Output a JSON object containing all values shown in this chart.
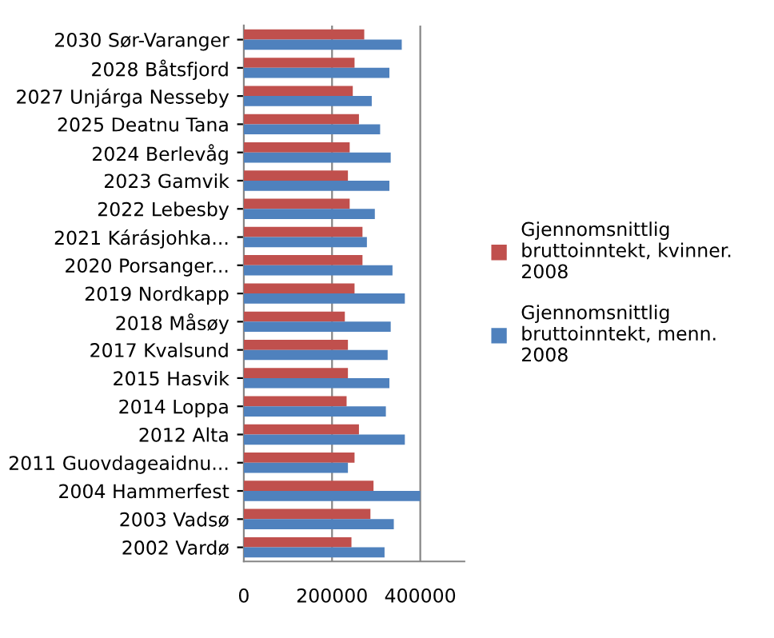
{
  "chart_data": {
    "type": "bar",
    "orientation": "horizontal",
    "categories": [
      "2030 Sør-Varanger",
      "2028 Båtsfjord",
      "2027 Unjárga Nesseby",
      "2025 Deatnu Tana",
      "2024 Berlevåg",
      "2023 Gamvik",
      "2022 Lebesby",
      "2021 Kárásjohka...",
      "2020 Porsanger...",
      "2019 Nordkapp",
      "2018 Måsøy",
      "2017 Kvalsund",
      "2015 Hasvik",
      "2014 Loppa",
      "2012 Alta",
      "2011 Guovdageaidnu...",
      "2004 Hammerfest",
      "2003 Vadsø",
      "2002 Vardø"
    ],
    "series": [
      {
        "name": "Gjennomsnittlig bruttoinntekt, kvinner. 2008",
        "color": "#c0504d",
        "values": [
          273000,
          251000,
          247000,
          261000,
          240000,
          236000,
          240000,
          269000,
          269000,
          251000,
          229000,
          236000,
          236000,
          233000,
          261000,
          251000,
          294000,
          287000,
          244000
        ]
      },
      {
        "name": "Gjennomsnittlig bruttoinntekt, menn. 2008",
        "color": "#4f81bd",
        "values": [
          358000,
          330000,
          290000,
          309000,
          333000,
          330000,
          297000,
          279000,
          337000,
          365000,
          333000,
          326000,
          330000,
          322000,
          365000,
          236000,
          400000,
          340000,
          319000
        ]
      }
    ],
    "xlim": [
      0,
      500000
    ],
    "xticks": [
      0,
      200000,
      400000
    ],
    "grid": "x",
    "legend": "right"
  }
}
